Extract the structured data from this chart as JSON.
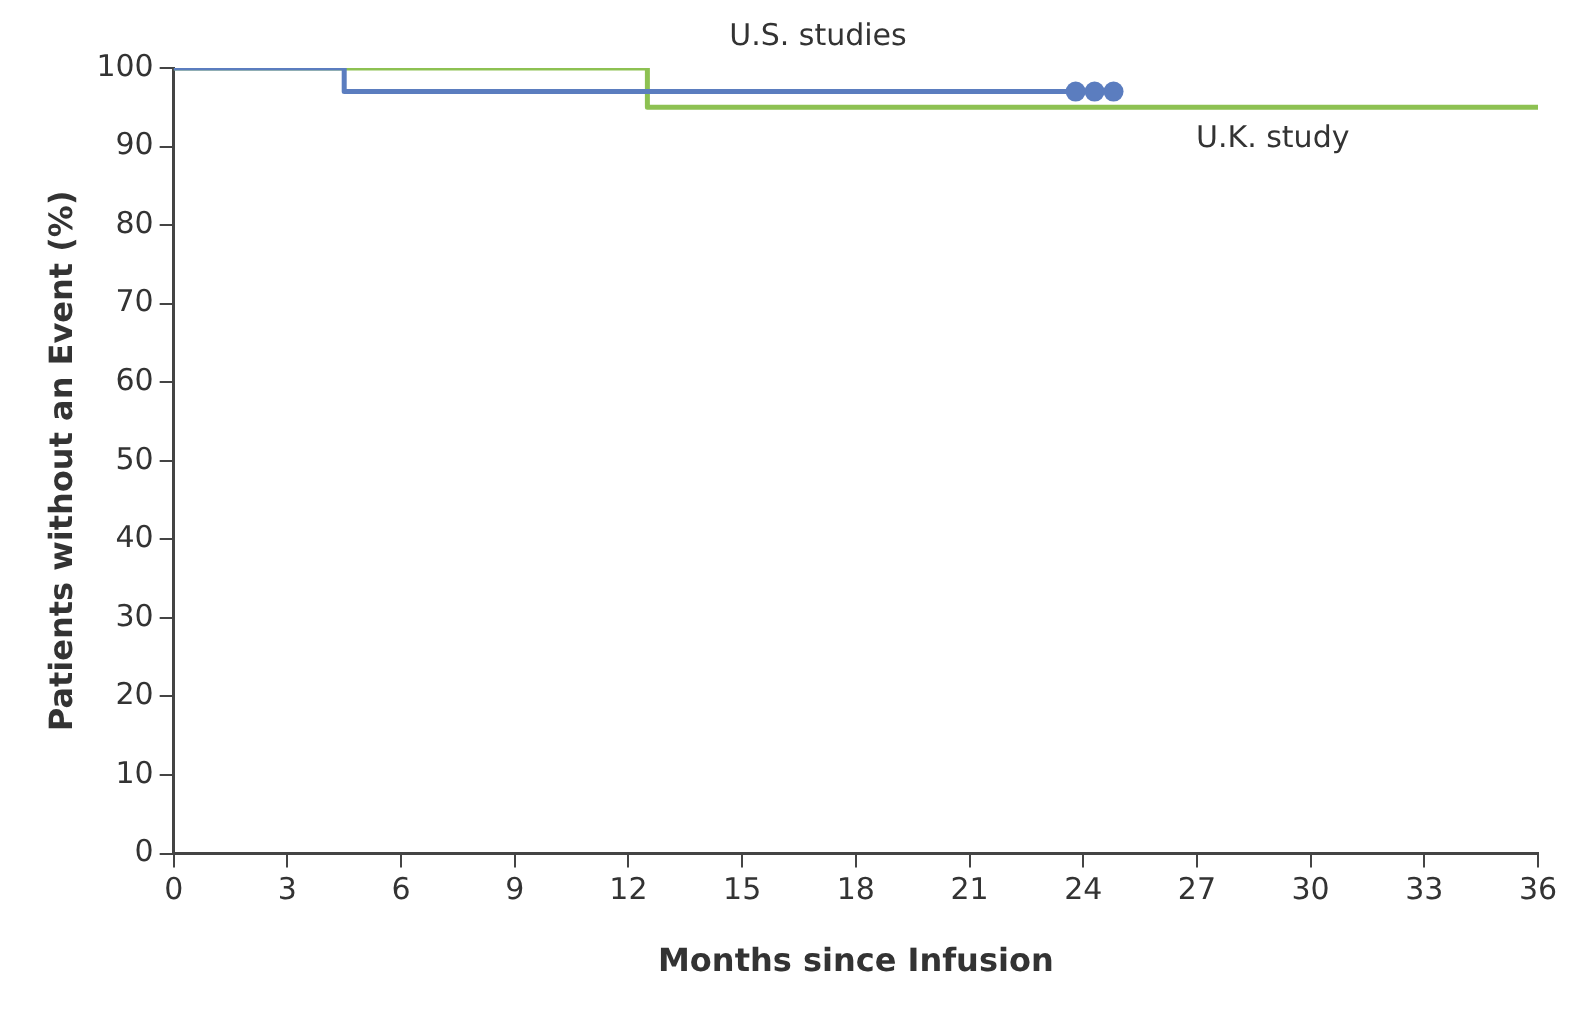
{
  "chart_data": {
    "type": "step",
    "xlabel": "Months since Infusion",
    "ylabel": "Patients without an Event (%)",
    "xlim": [
      0,
      36
    ],
    "xticks": [
      0,
      3,
      6,
      9,
      12,
      15,
      18,
      21,
      24,
      27,
      30,
      33,
      36
    ],
    "ylim": [
      0,
      100
    ],
    "yticks": [
      0,
      10,
      20,
      30,
      40,
      50,
      60,
      70,
      80,
      90,
      100
    ],
    "grid": false,
    "legend": false,
    "marker": "none",
    "series": [
      {
        "name": "U.S. studies",
        "color": "#5b7dbf",
        "x": [
          0,
          4.5,
          25
        ],
        "values": [
          100,
          97,
          97
        ]
      },
      {
        "name": "U.K. study",
        "color": "#8dc152",
        "x": [
          0,
          12.5,
          36
        ],
        "values": [
          100,
          95,
          95
        ]
      },
      {
        "type": "scatter",
        "color": "#5b7dbf",
        "x": [
          23.8,
          24.3,
          24.8
        ],
        "values": [
          97,
          97,
          97
        ],
        "marker": "circle"
      }
    ]
  }
}
